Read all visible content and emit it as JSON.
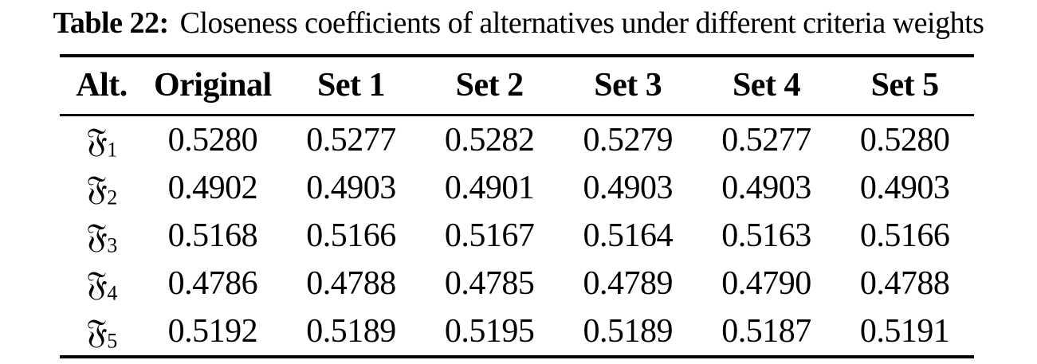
{
  "caption": {
    "label": "Table 22:",
    "text": "Closeness coefficients of alternatives under different criteria weights"
  },
  "table": {
    "columns": [
      "Alt.",
      "Original",
      "Set 1",
      "Set 2",
      "Set 3",
      "Set 4",
      "Set 5"
    ],
    "rows": [
      {
        "symbol": "𝔉",
        "index": "1",
        "values": [
          "0.5280",
          "0.5277",
          "0.5282",
          "0.5279",
          "0.5277",
          "0.5280"
        ]
      },
      {
        "symbol": "𝔉",
        "index": "2",
        "values": [
          "0.4902",
          "0.4903",
          "0.4901",
          "0.4903",
          "0.4903",
          "0.4903"
        ]
      },
      {
        "symbol": "𝔉",
        "index": "3",
        "values": [
          "0.5168",
          "0.5166",
          "0.5167",
          "0.5164",
          "0.5163",
          "0.5166"
        ]
      },
      {
        "symbol": "𝔉",
        "index": "4",
        "values": [
          "0.4786",
          "0.4788",
          "0.4785",
          "0.4789",
          "0.4790",
          "0.4788"
        ]
      },
      {
        "symbol": "𝔉",
        "index": "5",
        "values": [
          "0.5192",
          "0.5189",
          "0.5195",
          "0.5189",
          "0.5187",
          "0.5191"
        ]
      }
    ]
  },
  "colors": {
    "text": "#000000",
    "background": "#ffffff"
  }
}
